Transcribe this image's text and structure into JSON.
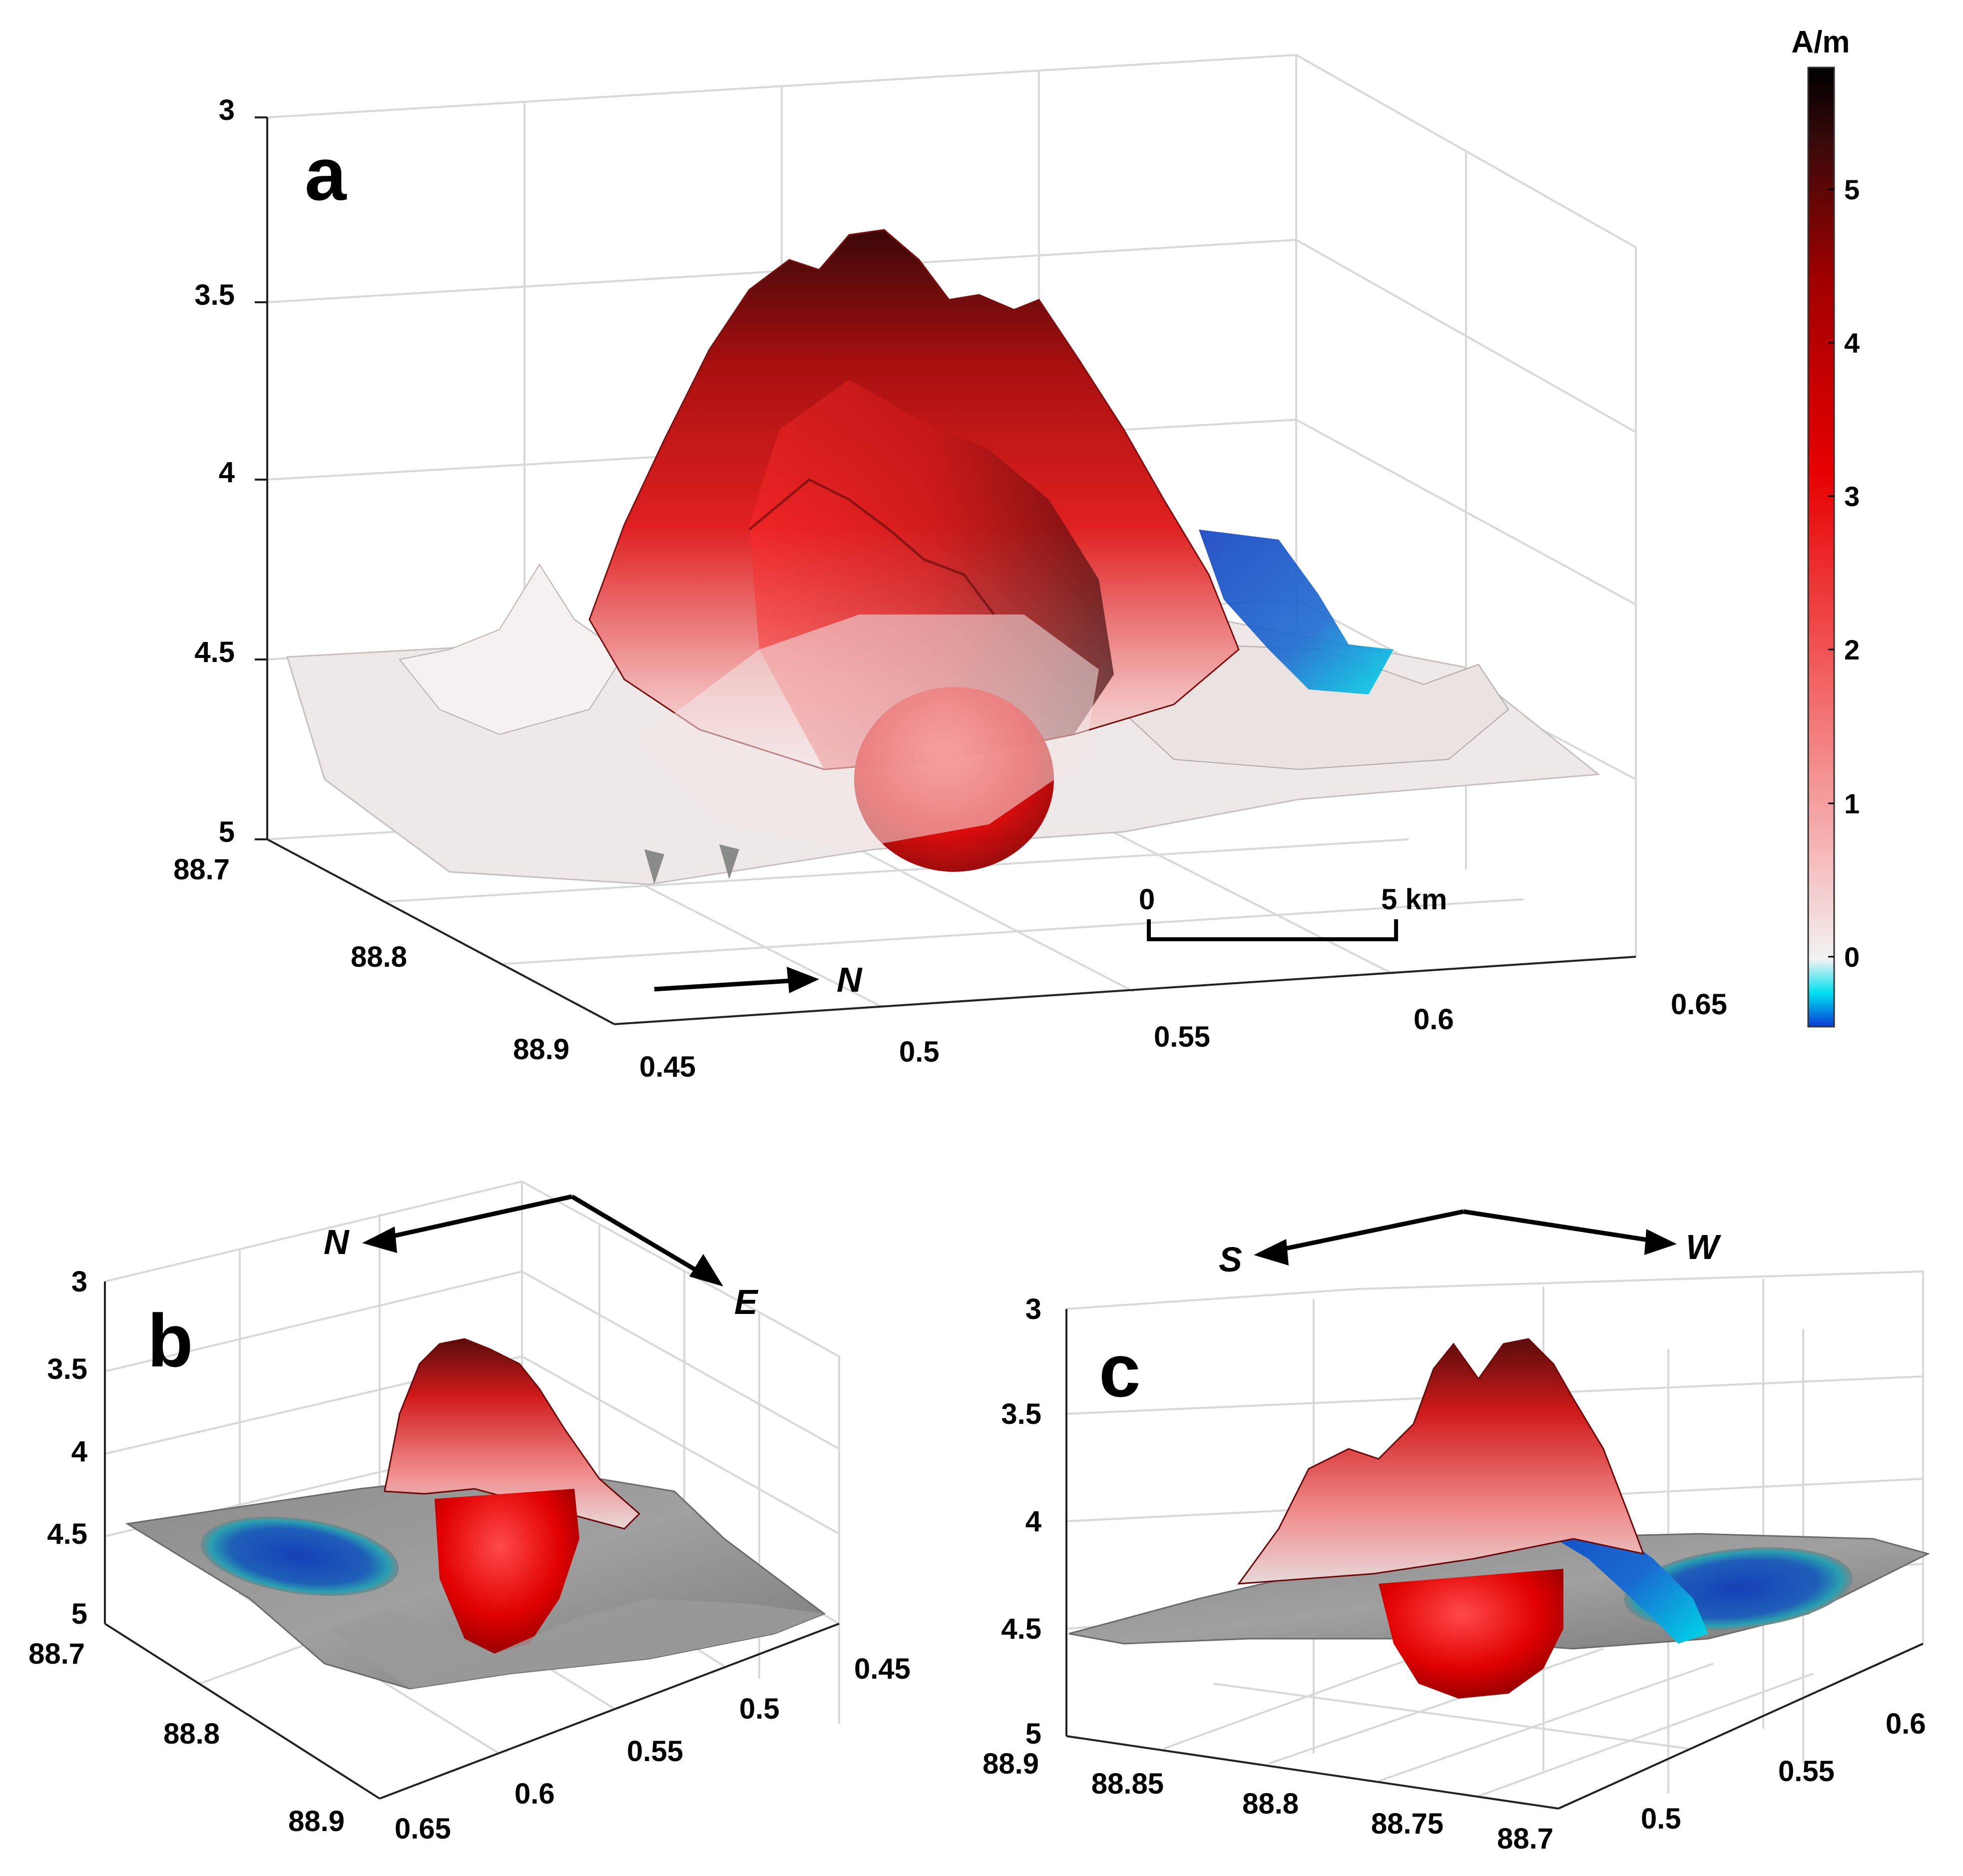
{
  "colorbar": {
    "title": "A/m",
    "ticks": [
      "0",
      "1",
      "2",
      "3",
      "4",
      "5"
    ],
    "min": -0.45,
    "max": 5.8,
    "colormap": [
      "#0a3ad6",
      "#00e0f0",
      "#f0f0f0",
      "#f6b8b8",
      "#f05050",
      "#e60000",
      "#a00000",
      "#3a0a0a",
      "#000000"
    ]
  },
  "scalebar": {
    "start": "0",
    "end": "5 km"
  },
  "chart_data": [
    {
      "panel": "a",
      "type": "3d-surface",
      "title": "a",
      "z_ticks": [
        "3",
        "3.5",
        "4",
        "4.5",
        "5"
      ],
      "lon_ticks": [
        "88.7",
        "88.8",
        "88.9"
      ],
      "lat_ticks": [
        "0.45",
        "0.5",
        "0.55",
        "0.6",
        "0.65"
      ],
      "zlim": [
        3,
        5
      ],
      "arrows": [
        "N"
      ]
    },
    {
      "panel": "b",
      "type": "3d-surface",
      "title": "b",
      "z_ticks": [
        "3",
        "3.5",
        "4",
        "4.5",
        "5"
      ],
      "lon_ticks": [
        "88.7",
        "88.8",
        "88.9"
      ],
      "lat_ticks": [
        "0.65",
        "0.6",
        "0.55",
        "0.5",
        "0.45"
      ],
      "zlim": [
        3,
        5
      ],
      "arrows": [
        "N",
        "E"
      ]
    },
    {
      "panel": "c",
      "type": "3d-surface",
      "title": "c",
      "z_ticks": [
        "3",
        "3.5",
        "4",
        "4.5",
        "5"
      ],
      "lon_ticks": [
        "88.9",
        "88.85",
        "88.8",
        "88.75",
        "88.7"
      ],
      "lat_ticks": [
        "0.5",
        "0.55",
        "0.6"
      ],
      "zlim": [
        3,
        5
      ],
      "arrows": [
        "S",
        "W"
      ]
    }
  ]
}
